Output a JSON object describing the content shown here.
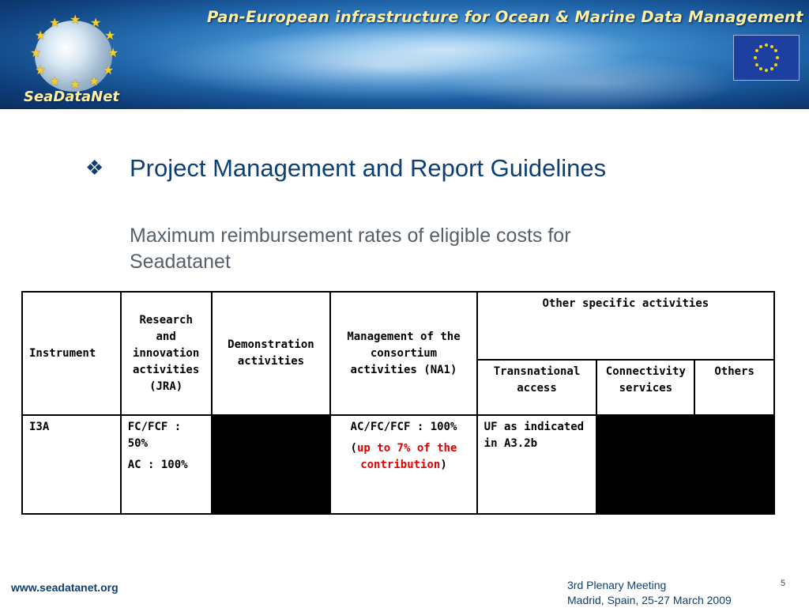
{
  "banner": {
    "title": "Pan-European infrastructure for Ocean & Marine Data Management",
    "logo_text": "SeaDataNet"
  },
  "slide": {
    "bullet_icon": "diamond-bullet",
    "heading": "Project Management and Report Guidelines",
    "subheading": "Maximum reimbursement rates of eligible costs for Seadatanet"
  },
  "table": {
    "headers": {
      "instrument": "Instrument",
      "research": "Research and innovation activities (JRA)",
      "demonstration": "Demonstration activities",
      "management": "Management of the consortium activities (NA1)",
      "other": "Other specific activities",
      "transnational": "Transnational access",
      "connectivity": "Connectivity services",
      "others": "Others"
    },
    "row": {
      "instrument": "I3A",
      "research_line1": "FC/FCF : 50%",
      "research_line2": "AC : 100%",
      "management_line1": "AC/FC/FCF : 100%",
      "management_open": "(",
      "management_note": "up to 7% of the contribution",
      "management_close": ")",
      "transnational": "UF as indicated in A3.2b"
    },
    "colors": {
      "note": "#e00000",
      "blocked": "#000000"
    }
  },
  "footer": {
    "url": "www.seadatanet.org",
    "meeting_line1": "3rd Plenary Meeting",
    "meeting_line2": "Madrid, Spain, 25-27 March 2009",
    "page_number": "5"
  }
}
